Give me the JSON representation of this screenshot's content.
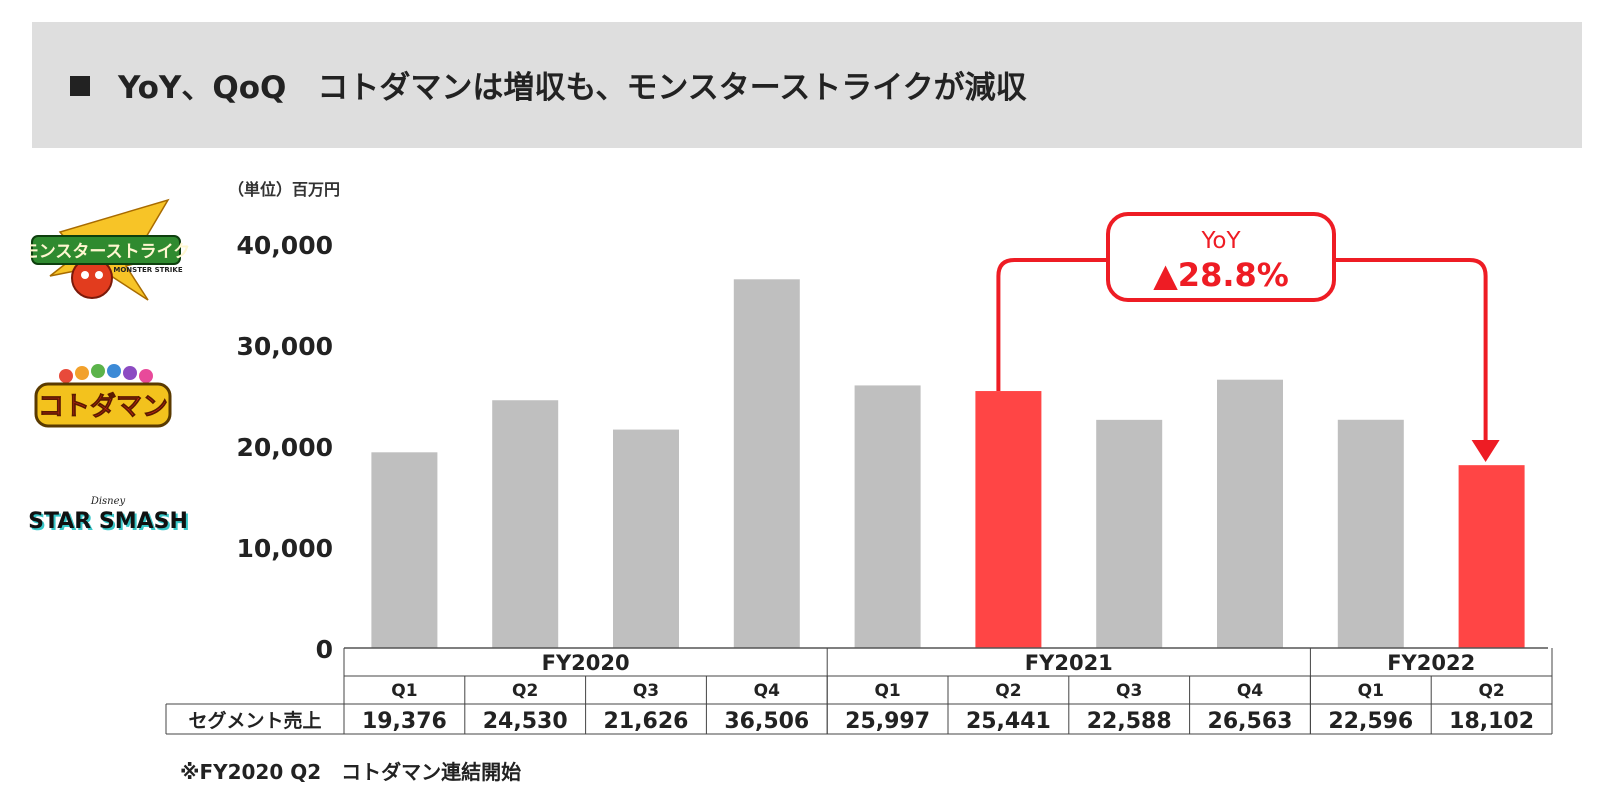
{
  "header": {
    "title": "YoY、QoQ　コトダマンは増収も、モンスターストライクが減収"
  },
  "unit_label": "（単位）百万円",
  "logos": [
    {
      "name": "monster-strike-logo",
      "text": "モンスターストライク",
      "sub": "MONSTER STRIKE"
    },
    {
      "name": "kotodaman-logo",
      "text": "コトダマン"
    },
    {
      "name": "star-smash-logo",
      "text": "STAR SMASH",
      "sub": "Disney"
    }
  ],
  "footnote": "※FY2020 Q2　コトダマン連結開始",
  "colors": {
    "bar_default": "#bfbfbf",
    "bar_highlight": "#ff4545",
    "annotation": "#ee1c24",
    "title_band": "#dedede"
  },
  "chart_data": {
    "type": "bar",
    "y_ticks": [
      "0",
      "10,000",
      "20,000",
      "30,000",
      "40,000"
    ],
    "ylim": [
      0,
      40000
    ],
    "categories": [
      "Q1",
      "Q2",
      "Q3",
      "Q4",
      "Q1",
      "Q2",
      "Q3",
      "Q4",
      "Q1",
      "Q2"
    ],
    "fiscal_years": [
      {
        "label": "FY2020",
        "span": 4
      },
      {
        "label": "FY2021",
        "span": 4
      },
      {
        "label": "FY2022",
        "span": 2
      }
    ],
    "series": [
      {
        "values": [
          19376,
          24530,
          21626,
          36506,
          25997,
          25441,
          22588,
          26563,
          22596,
          18102
        ]
      }
    ],
    "highlight_indices": [
      5,
      9
    ],
    "table_row_label": "セグメント売上",
    "table_values": [
      "19,376",
      "24,530",
      "21,626",
      "36,506",
      "25,997",
      "25,441",
      "22,588",
      "26,563",
      "22,596",
      "18,102"
    ],
    "annotation": {
      "from_index": 5,
      "to_index": 9,
      "label_line1": "YoY",
      "label_line2": "▲28.8%"
    }
  }
}
